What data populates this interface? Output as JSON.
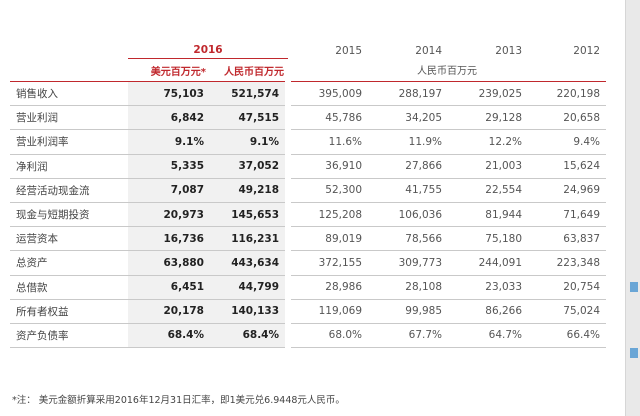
{
  "years": [
    "2016",
    "2015",
    "2014",
    "2013",
    "2012"
  ],
  "units": {
    "usd": "美元百万元*",
    "cny": "人民币百万元",
    "history": "人民币百万元"
  },
  "rows": [
    {
      "label": "销售收入",
      "usd": "75,103",
      "cny": "521,574",
      "y2015": "395,009",
      "y2014": "288,197",
      "y2013": "239,025",
      "y2012": "220,198"
    },
    {
      "label": "营业利润",
      "usd": "6,842",
      "cny": "47,515",
      "y2015": "45,786",
      "y2014": "34,205",
      "y2013": "29,128",
      "y2012": "20,658"
    },
    {
      "label": "营业利润率",
      "usd": "9.1%",
      "cny": "9.1%",
      "y2015": "11.6%",
      "y2014": "11.9%",
      "y2013": "12.2%",
      "y2012": "9.4%"
    },
    {
      "label": "净利润",
      "usd": "5,335",
      "cny": "37,052",
      "y2015": "36,910",
      "y2014": "27,866",
      "y2013": "21,003",
      "y2012": "15,624"
    },
    {
      "label": "经营活动现金流",
      "usd": "7,087",
      "cny": "49,218",
      "y2015": "52,300",
      "y2014": "41,755",
      "y2013": "22,554",
      "y2012": "24,969"
    },
    {
      "label": "现金与短期投资",
      "usd": "20,973",
      "cny": "145,653",
      "y2015": "125,208",
      "y2014": "106,036",
      "y2013": "81,944",
      "y2012": "71,649"
    },
    {
      "label": "运营资本",
      "usd": "16,736",
      "cny": "116,231",
      "y2015": "89,019",
      "y2014": "78,566",
      "y2013": "75,180",
      "y2012": "63,837"
    },
    {
      "label": "总资产",
      "usd": "63,880",
      "cny": "443,634",
      "y2015": "372,155",
      "y2014": "309,773",
      "y2013": "244,091",
      "y2012": "223,348"
    },
    {
      "label": "总借款",
      "usd": "6,451",
      "cny": "44,799",
      "y2015": "28,986",
      "y2014": "28,108",
      "y2013": "23,033",
      "y2012": "20,754"
    },
    {
      "label": "所有者权益",
      "usd": "20,178",
      "cny": "140,133",
      "y2015": "119,069",
      "y2014": "99,985",
      "y2013": "86,266",
      "y2012": "75,024"
    },
    {
      "label": "资产负债率",
      "usd": "68.4%",
      "cny": "68.4%",
      "y2015": "68.0%",
      "y2014": "67.7%",
      "y2013": "64.7%",
      "y2012": "66.4%"
    }
  ],
  "note": "*注： 美元金额折算采用2016年12月31日汇率，即1美元兑6.9448元人民币。",
  "colors": {
    "accent": "#c0282d",
    "shade": "#f1f1f1"
  }
}
